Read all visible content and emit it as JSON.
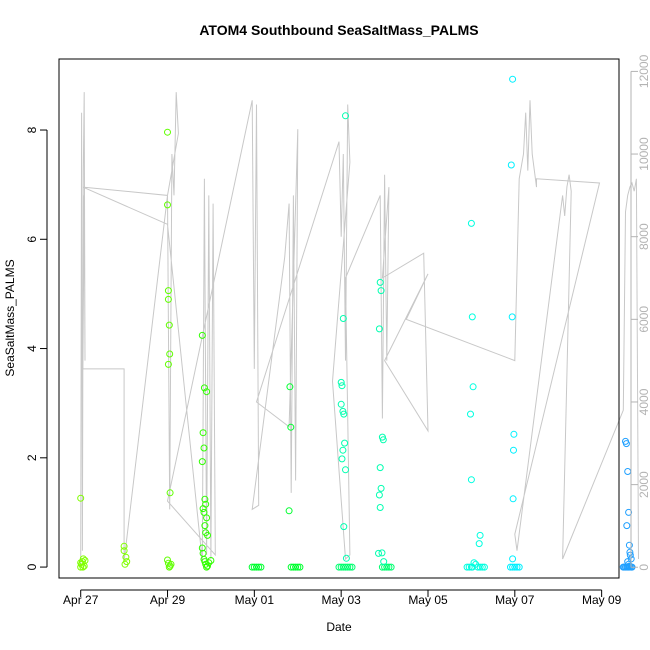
{
  "chart_data": {
    "type": "scatter",
    "title": "ATOM4 Southbound SeaSaltMass_PALMS",
    "xlabel": "Date",
    "ylabel": "SeaSaltMass_PALMS",
    "x_ticks": [
      "Apr 27",
      "Apr 29",
      "May 01",
      "May 03",
      "May 05",
      "May 07",
      "May 09"
    ],
    "y_ticks": [
      "0",
      "2",
      "4",
      "6",
      "8"
    ],
    "y2_ticks": [
      "0",
      "2000",
      "4000",
      "6000",
      "8000",
      "10000",
      "12000"
    ],
    "ylim": [
      -0.2,
      9.3
    ],
    "y2lim": [
      -260,
      12300
    ],
    "xlim_days_from_apr27": [
      -0.5,
      12.4
    ],
    "grid": false,
    "legend": "none",
    "line_color": "#c8c8c8",
    "altitude_series": {
      "name": "",
      "color": "#c8c8c8",
      "points": [
        [
          0.0,
          0
        ],
        [
          0.02,
          11000
        ],
        [
          0.04,
          400
        ],
        [
          0.06,
          9600
        ],
        [
          0.08,
          11500
        ],
        [
          0.1,
          5000
        ],
        [
          0.08,
          9000
        ],
        [
          0.05,
          4800
        ],
        [
          1.0,
          4800
        ],
        [
          1.0,
          150
        ],
        [
          2.0,
          9000
        ],
        [
          2.05,
          1400
        ],
        [
          2.1,
          10000
        ],
        [
          2.15,
          9000
        ],
        [
          2.2,
          11500
        ],
        [
          2.25,
          10500
        ],
        [
          2.0,
          9000
        ],
        [
          0.05,
          9200
        ],
        [
          2.0,
          8300
        ],
        [
          2.8,
          150
        ],
        [
          2.85,
          9400
        ],
        [
          2.9,
          300
        ],
        [
          2.95,
          9000
        ],
        [
          3.0,
          200
        ],
        [
          3.05,
          8800
        ],
        [
          3.1,
          300
        ],
        [
          2.0,
          1600
        ],
        [
          3.95,
          11300
        ],
        [
          4.0,
          4800
        ],
        [
          4.05,
          11200
        ],
        [
          4.1,
          1500
        ],
        [
          3.95,
          1400
        ],
        [
          4.7,
          7500
        ],
        [
          4.8,
          8800
        ],
        [
          4.85,
          1800
        ],
        [
          4.9,
          9000
        ],
        [
          4.95,
          2100
        ],
        [
          5.0,
          10600
        ],
        [
          4.8,
          3400
        ],
        [
          4.05,
          4000
        ],
        [
          5.95,
          10300
        ],
        [
          6.0,
          8000
        ],
        [
          6.05,
          10000
        ],
        [
          6.1,
          5000
        ],
        [
          6.15,
          11200
        ],
        [
          6.2,
          9800
        ],
        [
          5.8,
          4500
        ],
        [
          6.1,
          200
        ],
        [
          6.2,
          300
        ],
        [
          6.1,
          7000
        ],
        [
          6.9,
          9000
        ],
        [
          6.95,
          3600
        ],
        [
          7.0,
          9500
        ],
        [
          7.05,
          5000
        ],
        [
          7.1,
          9200
        ],
        [
          6.95,
          7000
        ],
        [
          7.9,
          7600
        ],
        [
          8.0,
          3300
        ],
        [
          7.0,
          5000
        ],
        [
          8.0,
          7100
        ],
        [
          7.5,
          6000
        ],
        [
          10.0,
          5000
        ],
        [
          10.1,
          9400
        ],
        [
          10.2,
          10000
        ],
        [
          10.25,
          11000
        ],
        [
          10.3,
          9600
        ],
        [
          10.35,
          11300
        ],
        [
          10.4,
          10000
        ],
        [
          10.5,
          9200
        ],
        [
          10.5,
          9400
        ],
        [
          11.95,
          9300
        ],
        [
          10.0,
          800
        ],
        [
          10.05,
          400
        ],
        [
          11.1,
          9000
        ],
        [
          11.15,
          8500
        ],
        [
          11.2,
          9200
        ],
        [
          11.25,
          9500
        ],
        [
          11.3,
          9100
        ],
        [
          11.1,
          200
        ],
        [
          12.5,
          3800
        ],
        [
          12.55,
          8600
        ],
        [
          12.6,
          9000
        ],
        [
          12.65,
          9200
        ],
        [
          12.7,
          9300
        ],
        [
          12.75,
          9100
        ],
        [
          12.8,
          9400
        ],
        [
          12.85,
          200
        ]
      ]
    },
    "series": [
      {
        "color": "#80ff00",
        "points": [
          [
            0.0,
            1.26
          ],
          [
            0.0,
            0.0
          ],
          [
            0.02,
            0.05
          ],
          [
            0.04,
            0.1
          ],
          [
            0.06,
            0.15
          ],
          [
            0.0,
            0.08
          ],
          [
            0.05,
            0.0
          ],
          [
            0.08,
            0.02
          ],
          [
            0.1,
            0.12
          ],
          [
            1.0,
            0.38
          ],
          [
            1.0,
            0.3
          ],
          [
            1.02,
            0.05
          ],
          [
            1.04,
            0.18
          ],
          [
            1.06,
            0.1
          ]
        ]
      },
      {
        "color": "#60ff00",
        "points": [
          [
            2.0,
            7.96
          ],
          [
            2.0,
            6.63
          ],
          [
            2.02,
            5.06
          ],
          [
            2.02,
            4.9
          ],
          [
            2.04,
            4.43
          ],
          [
            2.05,
            3.9
          ],
          [
            2.02,
            3.71
          ],
          [
            2.06,
            1.36
          ],
          [
            2.0,
            0.13
          ],
          [
            2.02,
            0.07
          ],
          [
            2.04,
            0.0
          ],
          [
            2.06,
            0.02
          ],
          [
            2.08,
            0.05
          ]
        ]
      },
      {
        "color": "#30ff00",
        "points": [
          [
            2.8,
            4.24
          ],
          [
            2.85,
            3.28
          ],
          [
            2.9,
            3.21
          ],
          [
            2.82,
            2.46
          ],
          [
            2.84,
            2.18
          ],
          [
            2.8,
            1.93
          ],
          [
            2.86,
            1.24
          ],
          [
            2.88,
            1.15
          ],
          [
            2.82,
            1.07
          ],
          [
            2.84,
            1.0
          ],
          [
            2.9,
            0.9
          ],
          [
            2.86,
            0.76
          ],
          [
            2.88,
            0.63
          ],
          [
            2.92,
            0.58
          ],
          [
            2.8,
            0.35
          ],
          [
            2.82,
            0.25
          ],
          [
            2.84,
            0.14
          ],
          [
            2.86,
            0.1
          ],
          [
            2.88,
            0.05
          ],
          [
            2.9,
            0.0
          ],
          [
            2.92,
            0.02
          ],
          [
            2.95,
            0.08
          ],
          [
            3.0,
            0.12
          ]
        ]
      },
      {
        "color": "#00ff30",
        "points": [
          [
            3.95,
            0.0
          ],
          [
            4.0,
            0.0
          ],
          [
            4.05,
            0.0
          ],
          [
            4.1,
            0.0
          ],
          [
            4.15,
            0.0
          ],
          [
            4.82,
            3.3
          ],
          [
            4.84,
            2.56
          ],
          [
            4.8,
            1.03
          ],
          [
            4.85,
            0.0
          ],
          [
            4.9,
            0.0
          ],
          [
            4.95,
            0.0
          ],
          [
            5.0,
            0.0
          ],
          [
            5.05,
            0.0
          ]
        ]
      },
      {
        "color": "#00ff70",
        "points": [
          [
            5.95,
            0.0
          ],
          [
            6.0,
            0.0
          ],
          [
            6.05,
            0.0
          ],
          [
            6.1,
            0.0
          ],
          [
            6.15,
            0.0
          ],
          [
            6.2,
            0.0
          ],
          [
            6.25,
            0.0
          ],
          [
            6.95,
            0.0
          ],
          [
            7.0,
            0.0
          ],
          [
            7.05,
            0.0
          ],
          [
            7.1,
            0.0
          ],
          [
            7.15,
            0.0
          ]
        ]
      },
      {
        "color": "#00ffb0",
        "points": [
          [
            6.1,
            8.26
          ],
          [
            6.05,
            4.55
          ],
          [
            6.0,
            3.38
          ],
          [
            6.02,
            3.32
          ],
          [
            6.04,
            2.85
          ],
          [
            6.06,
            2.8
          ],
          [
            6.0,
            2.98
          ],
          [
            6.08,
            2.27
          ],
          [
            6.04,
            2.14
          ],
          [
            6.1,
            1.78
          ],
          [
            6.02,
            1.98
          ],
          [
            6.06,
            0.74
          ],
          [
            6.12,
            0.16
          ],
          [
            6.9,
            5.21
          ],
          [
            6.92,
            5.06
          ],
          [
            6.88,
            4.36
          ],
          [
            6.95,
            2.38
          ],
          [
            6.97,
            2.33
          ],
          [
            6.9,
            1.82
          ],
          [
            6.92,
            1.44
          ],
          [
            6.88,
            1.32
          ],
          [
            6.9,
            1.09
          ],
          [
            6.94,
            0.26
          ],
          [
            6.86,
            0.25
          ],
          [
            6.98,
            0.1
          ]
        ]
      },
      {
        "color": "#00ffe0",
        "points": [
          [
            9.0,
            6.29
          ],
          [
            9.02,
            4.58
          ],
          [
            9.04,
            3.3
          ],
          [
            8.98,
            2.8
          ],
          [
            9.0,
            1.6
          ],
          [
            9.06,
            0.08
          ],
          [
            9.1,
            0.05
          ],
          [
            9.15,
            0.0
          ],
          [
            9.2,
            0.0
          ],
          [
            9.25,
            0.0
          ],
          [
            9.3,
            0.0
          ],
          [
            9.2,
            0.58
          ],
          [
            9.18,
            0.43
          ],
          [
            9.0,
            0.0
          ],
          [
            8.95,
            0.0
          ],
          [
            8.9,
            0.0
          ],
          [
            9.02,
            0.0
          ]
        ]
      },
      {
        "color": "#00f0ff",
        "points": [
          [
            9.95,
            8.93
          ],
          [
            9.92,
            7.36
          ],
          [
            9.94,
            4.58
          ],
          [
            9.98,
            2.43
          ],
          [
            9.97,
            2.14
          ],
          [
            9.96,
            1.25
          ],
          [
            9.95,
            0.15
          ],
          [
            9.9,
            0.0
          ],
          [
            9.95,
            0.0
          ],
          [
            10.0,
            0.0
          ],
          [
            10.05,
            0.0
          ],
          [
            10.1,
            0.0
          ]
        ]
      },
      {
        "color": "#20a0ff",
        "points": [
          [
            12.55,
            2.3
          ],
          [
            12.57,
            2.26
          ],
          [
            12.6,
            1.75
          ],
          [
            12.62,
            1.0
          ],
          [
            12.58,
            0.76
          ],
          [
            12.64,
            0.4
          ],
          [
            12.65,
            0.27
          ],
          [
            12.66,
            0.22
          ],
          [
            12.68,
            0.15
          ],
          [
            12.6,
            0.1
          ],
          [
            12.62,
            0.05
          ],
          [
            12.64,
            0.02
          ],
          [
            12.5,
            0.0
          ],
          [
            12.52,
            0.0
          ],
          [
            12.55,
            0.0
          ],
          [
            12.58,
            0.0
          ],
          [
            12.6,
            0.0
          ],
          [
            12.62,
            0.0
          ],
          [
            12.65,
            0.0
          ],
          [
            12.68,
            0.0
          ],
          [
            12.7,
            0.0
          ]
        ]
      }
    ]
  }
}
